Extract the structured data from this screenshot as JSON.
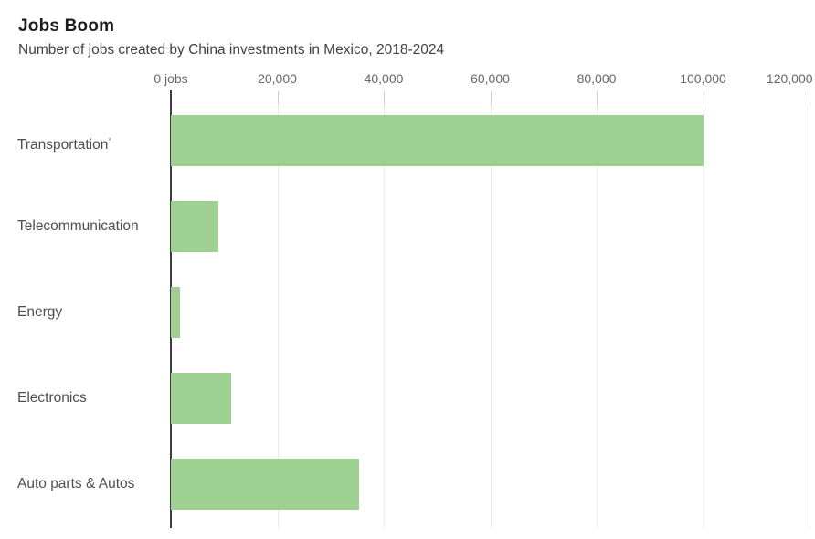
{
  "header": {
    "title": "Jobs Boom",
    "subtitle": "Number of jobs created by China investments in Mexico, 2018-2024"
  },
  "chart_data": {
    "type": "bar",
    "orientation": "horizontal",
    "title": "Jobs Boom",
    "subtitle": "Number of jobs created by China investments in Mexico, 2018-2024",
    "categories": [
      "Transportation*",
      "Telecommunication",
      "Energy",
      "Electronics",
      "Auto parts & Autos"
    ],
    "values": [
      100000,
      8900,
      1700,
      11300,
      35400
    ],
    "x_ticks": [
      0,
      20000,
      40000,
      60000,
      80000,
      100000,
      120000
    ],
    "x_tick_labels": [
      "0 jobs",
      "20,000",
      "40,000",
      "60,000",
      "80,000",
      "100,000",
      "120,000"
    ],
    "xlabel": "",
    "ylabel": "",
    "xlim": [
      0,
      120000
    ],
    "grid": true,
    "legend": false,
    "bar_color": "#9ed191",
    "axis_line_color": "#3d3d3d",
    "gridline_color": "#eaeaea"
  }
}
